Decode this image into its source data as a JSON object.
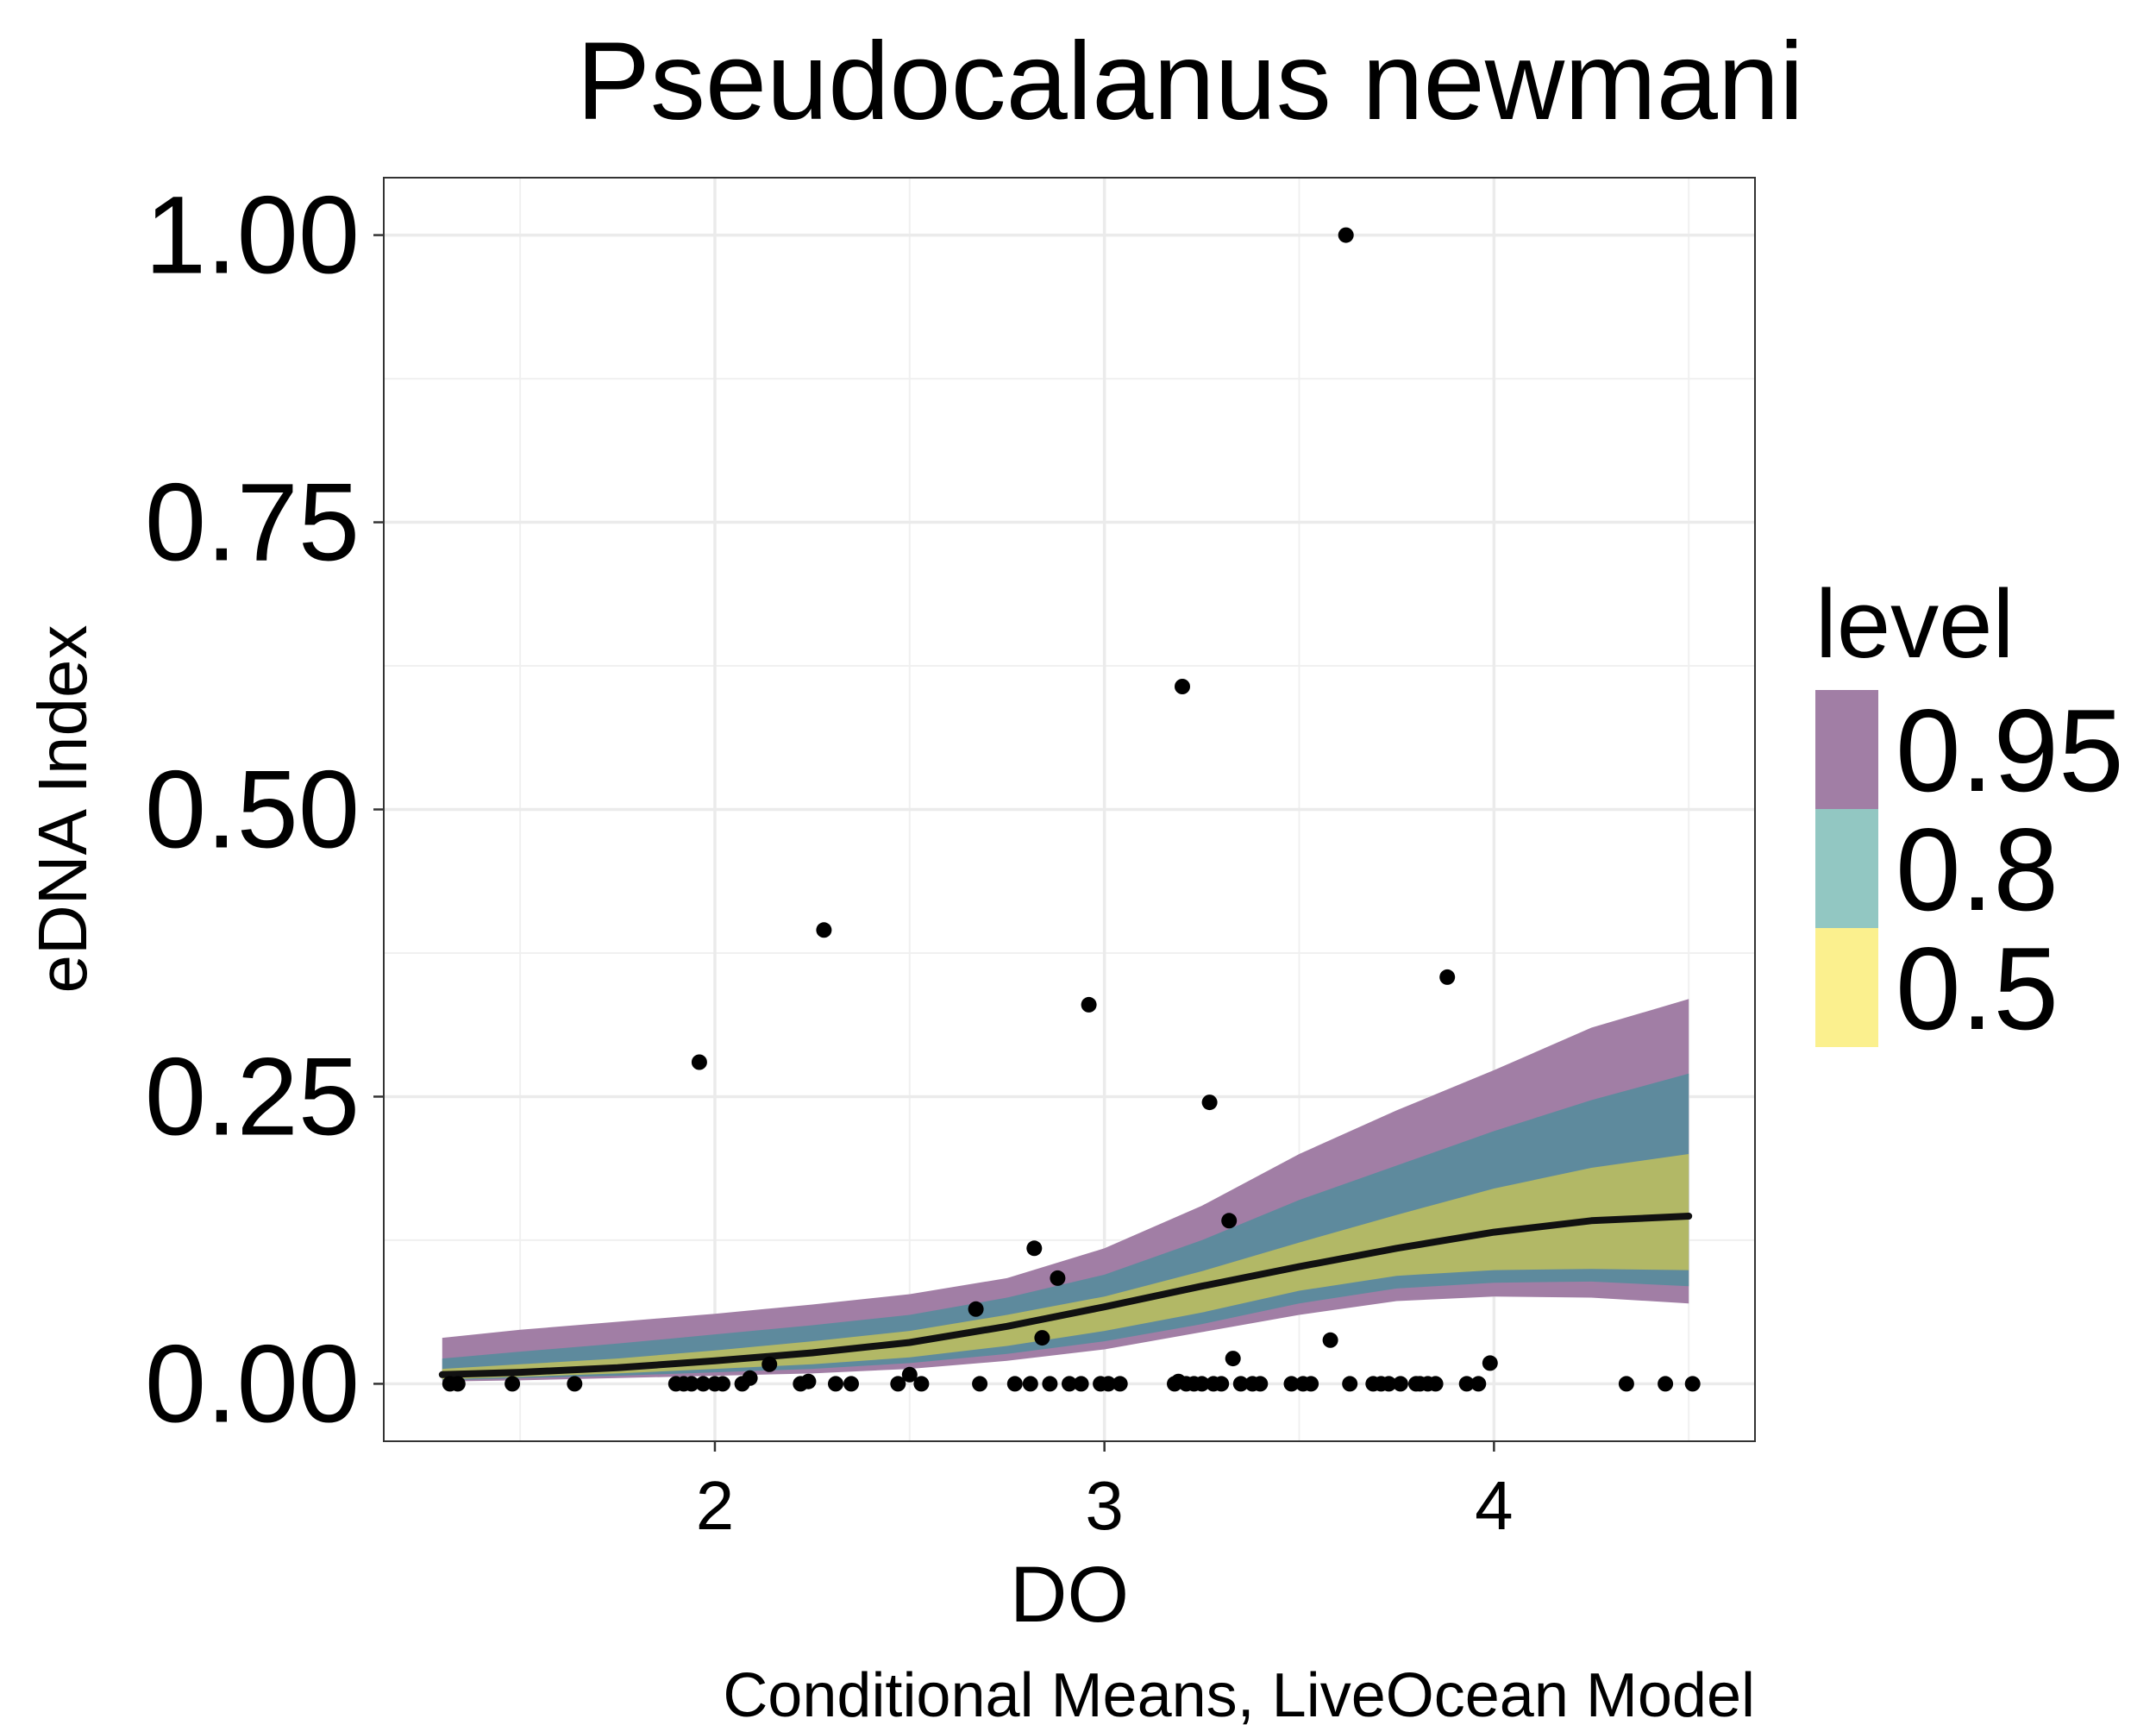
{
  "chart_data": {
    "type": "scatter",
    "title": "Pseudocalanus newmani",
    "xlabel": "DO",
    "ylabel": "eDNA Index",
    "caption": "Conditional Means, LiveOcean Model",
    "xlim": [
      1.15,
      4.67
    ],
    "ylim": [
      -0.05,
      1.05
    ],
    "x_ticks": [
      2,
      3,
      4
    ],
    "x_tick_labels": [
      "2",
      "3",
      "4"
    ],
    "y_ticks": [
      0,
      0.25,
      0.5,
      0.75,
      1.0
    ],
    "y_tick_labels": [
      "0.00",
      "0.25",
      "0.50",
      "0.75",
      "1.00"
    ],
    "grid": true,
    "legend": {
      "title": "level",
      "position": "right",
      "items": [
        {
          "label": "0.95",
          "color": "#a17ea5"
        },
        {
          "label": "0.8",
          "color": "#92c7c2"
        },
        {
          "label": "0.5",
          "color": "#fbf08e"
        }
      ]
    },
    "bands": [
      {
        "level": "0.95",
        "color": "#a17ea5",
        "x": [
          1.3,
          1.5,
          1.75,
          2.0,
          2.25,
          2.5,
          2.75,
          3.0,
          3.25,
          3.5,
          3.75,
          4.0,
          4.25,
          4.5
        ],
        "lower": [
          0.002,
          0.003,
          0.005,
          0.007,
          0.009,
          0.013,
          0.02,
          0.03,
          0.045,
          0.06,
          0.072,
          0.076,
          0.075,
          0.07
        ],
        "upper": [
          0.04,
          0.047,
          0.054,
          0.061,
          0.069,
          0.078,
          0.092,
          0.118,
          0.155,
          0.2,
          0.238,
          0.273,
          0.31,
          0.335
        ]
      },
      {
        "level": "0.8",
        "color": "#5e8a9d",
        "x": [
          1.3,
          1.5,
          1.75,
          2.0,
          2.25,
          2.5,
          2.75,
          3.0,
          3.25,
          3.5,
          3.75,
          4.0,
          4.25,
          4.5
        ],
        "lower": [
          0.003,
          0.005,
          0.007,
          0.01,
          0.013,
          0.018,
          0.026,
          0.037,
          0.052,
          0.07,
          0.083,
          0.088,
          0.089,
          0.085
        ],
        "upper": [
          0.022,
          0.028,
          0.035,
          0.043,
          0.051,
          0.06,
          0.075,
          0.095,
          0.125,
          0.16,
          0.19,
          0.22,
          0.247,
          0.27
        ]
      },
      {
        "level": "0.5",
        "color": "#b2b866",
        "x": [
          1.3,
          1.5,
          1.75,
          2.0,
          2.25,
          2.5,
          2.75,
          3.0,
          3.25,
          3.5,
          3.75,
          4.0,
          4.25,
          4.5
        ],
        "lower": [
          0.004,
          0.006,
          0.009,
          0.013,
          0.017,
          0.023,
          0.033,
          0.046,
          0.062,
          0.081,
          0.094,
          0.099,
          0.1,
          0.099
        ],
        "upper": [
          0.013,
          0.017,
          0.022,
          0.029,
          0.037,
          0.046,
          0.06,
          0.076,
          0.098,
          0.123,
          0.147,
          0.17,
          0.188,
          0.2
        ]
      }
    ],
    "mean_line": {
      "color": "#111111",
      "x": [
        1.3,
        1.5,
        1.75,
        2.0,
        2.25,
        2.5,
        2.75,
        3.0,
        3.25,
        3.5,
        3.75,
        4.0,
        4.25,
        4.5
      ],
      "y": [
        0.008,
        0.01,
        0.014,
        0.02,
        0.027,
        0.036,
        0.05,
        0.067,
        0.085,
        0.102,
        0.118,
        0.132,
        0.142,
        0.146
      ]
    },
    "points": {
      "color": "#000000",
      "x": [
        1.32,
        1.34,
        1.48,
        1.64,
        1.9,
        1.92,
        1.94,
        1.96,
        1.97,
        2.0,
        2.02,
        2.07,
        2.09,
        2.14,
        2.22,
        2.24,
        2.28,
        2.31,
        2.35,
        2.47,
        2.5,
        2.53,
        2.67,
        2.68,
        2.77,
        2.81,
        2.82,
        2.84,
        2.86,
        2.88,
        2.91,
        2.94,
        2.96,
        2.99,
        3.01,
        3.04,
        3.18,
        3.19,
        3.2,
        3.21,
        3.23,
        3.25,
        3.27,
        3.28,
        3.3,
        3.32,
        3.33,
        3.35,
        3.38,
        3.4,
        3.48,
        3.51,
        3.53,
        3.58,
        3.62,
        3.63,
        3.69,
        3.71,
        3.73,
        3.76,
        3.8,
        3.81,
        3.83,
        3.85,
        3.88,
        3.93,
        3.96,
        3.99,
        4.34,
        4.44,
        4.51
      ],
      "y": [
        0.0,
        0.0,
        0.0,
        0.0,
        0.0,
        0.0,
        0.0,
        0.28,
        0.0,
        0.0,
        0.0,
        0.0,
        0.005,
        0.017,
        0.0,
        0.002,
        0.395,
        0.0,
        0.0,
        0.0,
        0.008,
        0.0,
        0.065,
        0.0,
        0.0,
        0.0,
        0.118,
        0.04,
        0.0,
        0.092,
        0.0,
        0.0,
        0.33,
        0.0,
        0.0,
        0.0,
        0.0,
        0.002,
        0.607,
        0.0,
        0.0,
        0.0,
        0.245,
        0.0,
        0.0,
        0.142,
        0.022,
        0.0,
        0.0,
        0.0,
        0.0,
        0.0,
        0.0,
        0.038,
        1.0,
        0.0,
        0.0,
        0.0,
        0.0,
        0.0,
        0.0,
        0.0,
        0.0,
        0.0,
        0.354,
        0.0,
        0.0,
        0.018,
        0.0,
        0.0,
        0.0
      ]
    }
  }
}
